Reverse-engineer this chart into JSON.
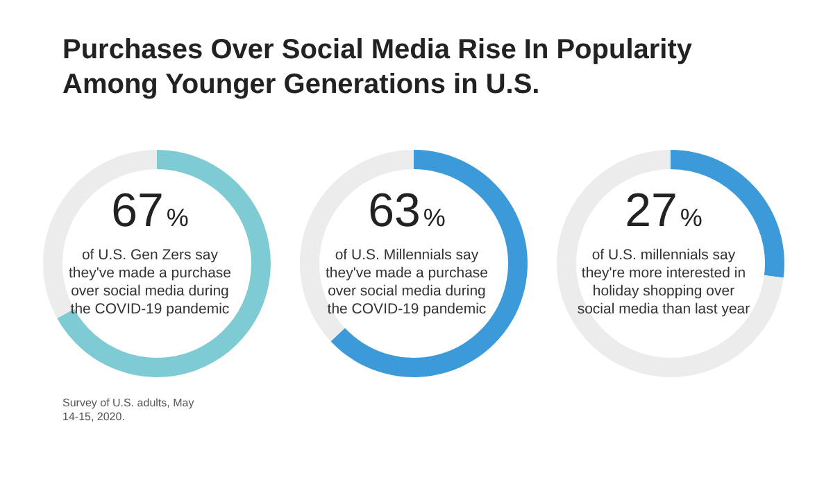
{
  "chart_data": [
    {
      "type": "donut",
      "title": "Purchases Over Social Media Rise In Popularity\nAmong Younger Generations in U.S.",
      "categories": [
        null,
        null
      ],
      "values": [
        67,
        33
      ],
      "colors": [
        "#7ecbd3",
        "#ececec"
      ],
      "value_labels": [
        "67%",
        null
      ],
      "annotations": [
        "of U.S. Gen Zers say they've made a purchase over social media during the COVID-19 pandemic",
        "Survey of U.S. adults, May 14-15, 2020."
      ]
    },
    {
      "type": "donut",
      "categories": [
        null,
        null
      ],
      "values": [
        63,
        37
      ],
      "colors": [
        "#3d9ad9",
        "#ececec"
      ],
      "value_labels": [
        "63%",
        null
      ],
      "annotations": [
        "of U.S. Millennials say they've made a purchase over social media during the COVID-19 pandemic"
      ]
    },
    {
      "type": "donut",
      "categories": [
        null,
        null
      ],
      "values": [
        27,
        73
      ],
      "colors": [
        "#3d9ad9",
        "#ececec"
      ],
      "value_labels": [
        "27%",
        null
      ],
      "annotations": [
        "of U.S. millennials say they're more interested in holiday shopping over social media than last year"
      ]
    }
  ]
}
